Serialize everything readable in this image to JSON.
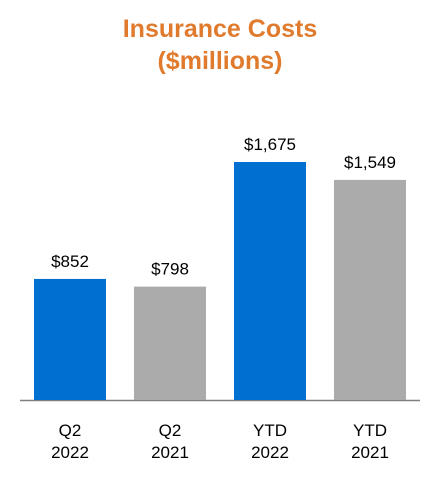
{
  "chart_data": {
    "type": "bar",
    "title": [
      "Insurance Costs",
      "($millions)"
    ],
    "categories": [
      [
        "Q2",
        "2022"
      ],
      [
        "Q2",
        "2021"
      ],
      [
        "YTD",
        "2022"
      ],
      [
        "YTD",
        "2021"
      ]
    ],
    "values": [
      852,
      798,
      1675,
      1549
    ],
    "data_labels": [
      "$852",
      "$798",
      "$1,675",
      "$1,549"
    ],
    "bar_colors": [
      "#0070d0",
      "#ababab",
      "#0070d0",
      "#ababab"
    ],
    "title_color": "#e07b2e",
    "axis_color": "#808080",
    "ylim": [
      0,
      1900
    ],
    "grid": false,
    "legend": "none"
  }
}
